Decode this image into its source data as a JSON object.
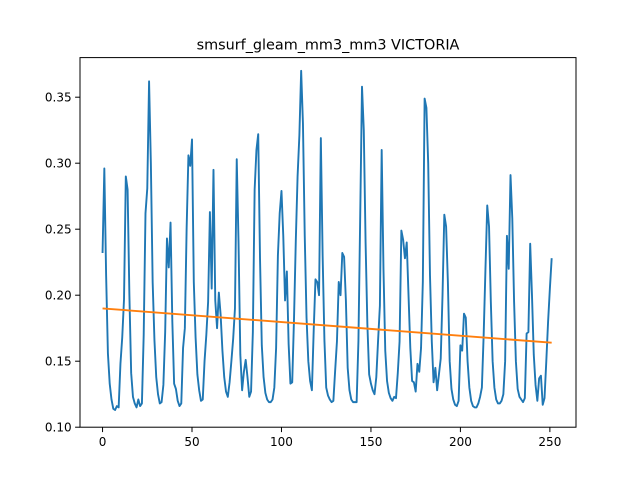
{
  "chart_data": {
    "type": "line",
    "title": "smsurf_gleam_mm3_mm3 VICTORIA",
    "xlabel": "",
    "ylabel": "",
    "xlim": [
      -12.6,
      264.6
    ],
    "ylim": [
      0.1,
      0.38
    ],
    "xticks": [
      0,
      50,
      100,
      150,
      200,
      250
    ],
    "xtick_labels": [
      "0",
      "50",
      "100",
      "150",
      "200",
      "250"
    ],
    "yticks": [
      0.1,
      0.15,
      0.2,
      0.25,
      0.3,
      0.35
    ],
    "ytick_labels": [
      "0.10",
      "0.15",
      "0.20",
      "0.25",
      "0.30",
      "0.35"
    ],
    "grid": false,
    "series": [
      {
        "color": "#1f77b4",
        "points": [
          [
            0,
            0.232
          ],
          [
            1,
            0.296
          ],
          [
            2,
            0.215
          ],
          [
            3,
            0.156
          ],
          [
            4,
            0.133
          ],
          [
            5,
            0.121
          ],
          [
            6,
            0.114
          ],
          [
            7,
            0.113
          ],
          [
            8,
            0.116
          ],
          [
            9,
            0.115
          ],
          [
            10,
            0.148
          ],
          [
            11,
            0.168
          ],
          [
            12,
            0.197
          ],
          [
            13,
            0.29
          ],
          [
            14,
            0.28
          ],
          [
            15,
            0.2
          ],
          [
            16,
            0.141
          ],
          [
            17,
            0.123
          ],
          [
            18,
            0.118
          ],
          [
            19,
            0.115
          ],
          [
            20,
            0.121
          ],
          [
            21,
            0.116
          ],
          [
            22,
            0.118
          ],
          [
            23,
            0.17
          ],
          [
            24,
            0.262
          ],
          [
            25,
            0.281
          ],
          [
            26,
            0.362
          ],
          [
            27,
            0.3
          ],
          [
            28,
            0.21
          ],
          [
            29,
            0.166
          ],
          [
            30,
            0.138
          ],
          [
            31,
            0.125
          ],
          [
            32,
            0.118
          ],
          [
            33,
            0.119
          ],
          [
            34,
            0.132
          ],
          [
            35,
            0.172
          ],
          [
            36,
            0.243
          ],
          [
            37,
            0.221
          ],
          [
            38,
            0.255
          ],
          [
            39,
            0.18
          ],
          [
            40,
            0.133
          ],
          [
            41,
            0.129
          ],
          [
            42,
            0.12
          ],
          [
            43,
            0.116
          ],
          [
            44,
            0.118
          ],
          [
            45,
            0.16
          ],
          [
            46,
            0.175
          ],
          [
            47,
            0.251
          ],
          [
            48,
            0.306
          ],
          [
            49,
            0.298
          ],
          [
            50,
            0.318
          ],
          [
            51,
            0.21
          ],
          [
            52,
            0.168
          ],
          [
            53,
            0.14
          ],
          [
            54,
            0.128
          ],
          [
            55,
            0.12
          ],
          [
            56,
            0.121
          ],
          [
            57,
            0.15
          ],
          [
            58,
            0.17
          ],
          [
            59,
            0.195
          ],
          [
            60,
            0.263
          ],
          [
            61,
            0.205
          ],
          [
            62,
            0.295
          ],
          [
            63,
            0.196
          ],
          [
            64,
            0.175
          ],
          [
            65,
            0.202
          ],
          [
            66,
            0.185
          ],
          [
            67,
            0.158
          ],
          [
            68,
            0.138
          ],
          [
            69,
            0.127
          ],
          [
            70,
            0.123
          ],
          [
            71,
            0.134
          ],
          [
            72,
            0.15
          ],
          [
            73,
            0.167
          ],
          [
            74,
            0.19
          ],
          [
            75,
            0.303
          ],
          [
            76,
            0.24
          ],
          [
            77,
            0.155
          ],
          [
            78,
            0.128
          ],
          [
            79,
            0.142
          ],
          [
            80,
            0.151
          ],
          [
            81,
            0.138
          ],
          [
            82,
            0.123
          ],
          [
            83,
            0.127
          ],
          [
            84,
            0.172
          ],
          [
            85,
            0.28
          ],
          [
            86,
            0.31
          ],
          [
            87,
            0.322
          ],
          [
            88,
            0.228
          ],
          [
            89,
            0.162
          ],
          [
            90,
            0.138
          ],
          [
            91,
            0.126
          ],
          [
            92,
            0.121
          ],
          [
            93,
            0.119
          ],
          [
            94,
            0.119
          ],
          [
            95,
            0.121
          ],
          [
            96,
            0.13
          ],
          [
            97,
            0.16
          ],
          [
            98,
            0.23
          ],
          [
            99,
            0.262
          ],
          [
            100,
            0.279
          ],
          [
            101,
            0.245
          ],
          [
            102,
            0.196
          ],
          [
            103,
            0.218
          ],
          [
            104,
            0.163
          ],
          [
            105,
            0.133
          ],
          [
            106,
            0.134
          ],
          [
            107,
            0.182
          ],
          [
            108,
            0.241
          ],
          [
            109,
            0.29
          ],
          [
            110,
            0.321
          ],
          [
            111,
            0.37
          ],
          [
            112,
            0.33
          ],
          [
            113,
            0.245
          ],
          [
            114,
            0.183
          ],
          [
            115,
            0.15
          ],
          [
            116,
            0.135
          ],
          [
            117,
            0.128
          ],
          [
            118,
            0.173
          ],
          [
            119,
            0.212
          ],
          [
            120,
            0.21
          ],
          [
            121,
            0.2
          ],
          [
            122,
            0.319
          ],
          [
            123,
            0.23
          ],
          [
            124,
            0.166
          ],
          [
            125,
            0.13
          ],
          [
            126,
            0.124
          ],
          [
            127,
            0.121
          ],
          [
            128,
            0.119
          ],
          [
            129,
            0.12
          ],
          [
            130,
            0.143
          ],
          [
            131,
            0.165
          ],
          [
            132,
            0.21
          ],
          [
            133,
            0.2
          ],
          [
            134,
            0.232
          ],
          [
            135,
            0.229
          ],
          [
            136,
            0.196
          ],
          [
            137,
            0.145
          ],
          [
            138,
            0.128
          ],
          [
            139,
            0.121
          ],
          [
            140,
            0.119
          ],
          [
            141,
            0.119
          ],
          [
            142,
            0.119
          ],
          [
            143,
            0.165
          ],
          [
            144,
            0.26
          ],
          [
            145,
            0.358
          ],
          [
            146,
            0.325
          ],
          [
            147,
            0.24
          ],
          [
            148,
            0.178
          ],
          [
            149,
            0.14
          ],
          [
            150,
            0.133
          ],
          [
            151,
            0.128
          ],
          [
            152,
            0.125
          ],
          [
            153,
            0.138
          ],
          [
            154,
            0.166
          ],
          [
            155,
            0.192
          ],
          [
            156,
            0.31
          ],
          [
            157,
            0.22
          ],
          [
            158,
            0.158
          ],
          [
            159,
            0.135
          ],
          [
            160,
            0.126
          ],
          [
            161,
            0.122
          ],
          [
            162,
            0.12
          ],
          [
            163,
            0.123
          ],
          [
            164,
            0.122
          ],
          [
            165,
            0.141
          ],
          [
            166,
            0.165
          ],
          [
            167,
            0.249
          ],
          [
            168,
            0.242
          ],
          [
            169,
            0.228
          ],
          [
            170,
            0.24
          ],
          [
            171,
            0.2
          ],
          [
            172,
            0.16
          ],
          [
            173,
            0.135
          ],
          [
            174,
            0.134
          ],
          [
            175,
            0.127
          ],
          [
            176,
            0.148
          ],
          [
            177,
            0.142
          ],
          [
            178,
            0.16
          ],
          [
            179,
            0.21
          ],
          [
            180,
            0.349
          ],
          [
            181,
            0.342
          ],
          [
            182,
            0.3
          ],
          [
            183,
            0.215
          ],
          [
            184,
            0.165
          ],
          [
            185,
            0.134
          ],
          [
            186,
            0.145
          ],
          [
            187,
            0.128
          ],
          [
            188,
            0.14
          ],
          [
            189,
            0.152
          ],
          [
            190,
            0.2
          ],
          [
            191,
            0.261
          ],
          [
            192,
            0.252
          ],
          [
            193,
            0.21
          ],
          [
            194,
            0.15
          ],
          [
            195,
            0.129
          ],
          [
            196,
            0.121
          ],
          [
            197,
            0.117
          ],
          [
            198,
            0.116
          ],
          [
            199,
            0.12
          ],
          [
            200,
            0.162
          ],
          [
            201,
            0.158
          ],
          [
            202,
            0.186
          ],
          [
            203,
            0.183
          ],
          [
            204,
            0.15
          ],
          [
            205,
            0.13
          ],
          [
            206,
            0.12
          ],
          [
            207,
            0.116
          ],
          [
            208,
            0.115
          ],
          [
            209,
            0.115
          ],
          [
            210,
            0.118
          ],
          [
            211,
            0.123
          ],
          [
            212,
            0.13
          ],
          [
            213,
            0.17
          ],
          [
            214,
            0.22
          ],
          [
            215,
            0.268
          ],
          [
            216,
            0.252
          ],
          [
            217,
            0.195
          ],
          [
            218,
            0.15
          ],
          [
            219,
            0.13
          ],
          [
            220,
            0.121
          ],
          [
            221,
            0.118
          ],
          [
            222,
            0.118
          ],
          [
            223,
            0.12
          ],
          [
            224,
            0.125
          ],
          [
            225,
            0.15
          ],
          [
            226,
            0.245
          ],
          [
            227,
            0.22
          ],
          [
            228,
            0.291
          ],
          [
            229,
            0.258
          ],
          [
            230,
            0.195
          ],
          [
            231,
            0.15
          ],
          [
            232,
            0.129
          ],
          [
            233,
            0.123
          ],
          [
            234,
            0.121
          ],
          [
            235,
            0.119
          ],
          [
            236,
            0.122
          ],
          [
            237,
            0.171
          ],
          [
            238,
            0.172
          ],
          [
            239,
            0.239
          ],
          [
            240,
            0.2
          ],
          [
            241,
            0.155
          ],
          [
            242,
            0.132
          ],
          [
            243,
            0.12
          ],
          [
            244,
            0.137
          ],
          [
            245,
            0.139
          ],
          [
            246,
            0.117
          ],
          [
            247,
            0.122
          ],
          [
            248,
            0.15
          ],
          [
            249,
            0.18
          ],
          [
            250,
            0.205
          ],
          [
            251,
            0.228
          ]
        ]
      },
      {
        "color": "#ff7f0e",
        "points": [
          [
            0,
            0.19
          ],
          [
            251,
            0.164
          ]
        ]
      }
    ]
  }
}
